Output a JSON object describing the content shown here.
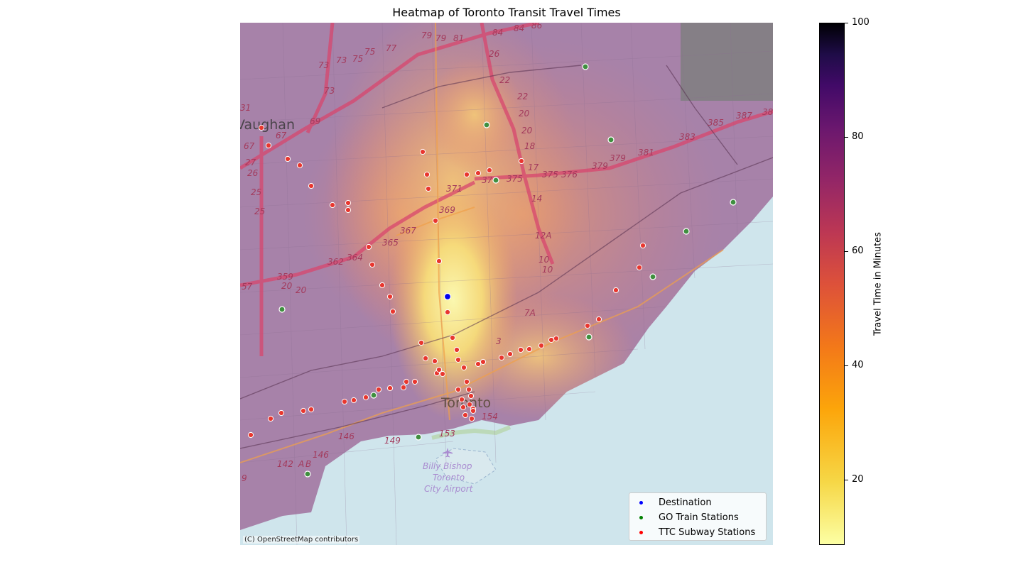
{
  "title": "Heatmap of Toronto Transit Travel Times",
  "attribution": "(C) OpenStreetMap contributors",
  "legend": [
    {
      "label": "Destination",
      "color": "#0000ff"
    },
    {
      "label": "GO Train Stations",
      "color": "#008000"
    },
    {
      "label": "TTC Subway Stations",
      "color": "#ff0000"
    }
  ],
  "colorbar": {
    "label": "Travel Time in Minutes",
    "ticks": [
      "20",
      "40",
      "60",
      "80",
      "100"
    ],
    "min": 8,
    "max": 100,
    "colormap": "inferno_r"
  },
  "map_labels": {
    "vaughan": "Vaughan",
    "toronto": "Toronto",
    "airport_1": "Billy Bishop",
    "airport_2": "Toronto",
    "airport_3": "City Airport"
  },
  "colors": {
    "water": "#cde3ea",
    "land": "#e9e4da",
    "destination": "#0000ff",
    "go_station": "#3f8f3f",
    "ttc_station": "#e8372f"
  }
}
